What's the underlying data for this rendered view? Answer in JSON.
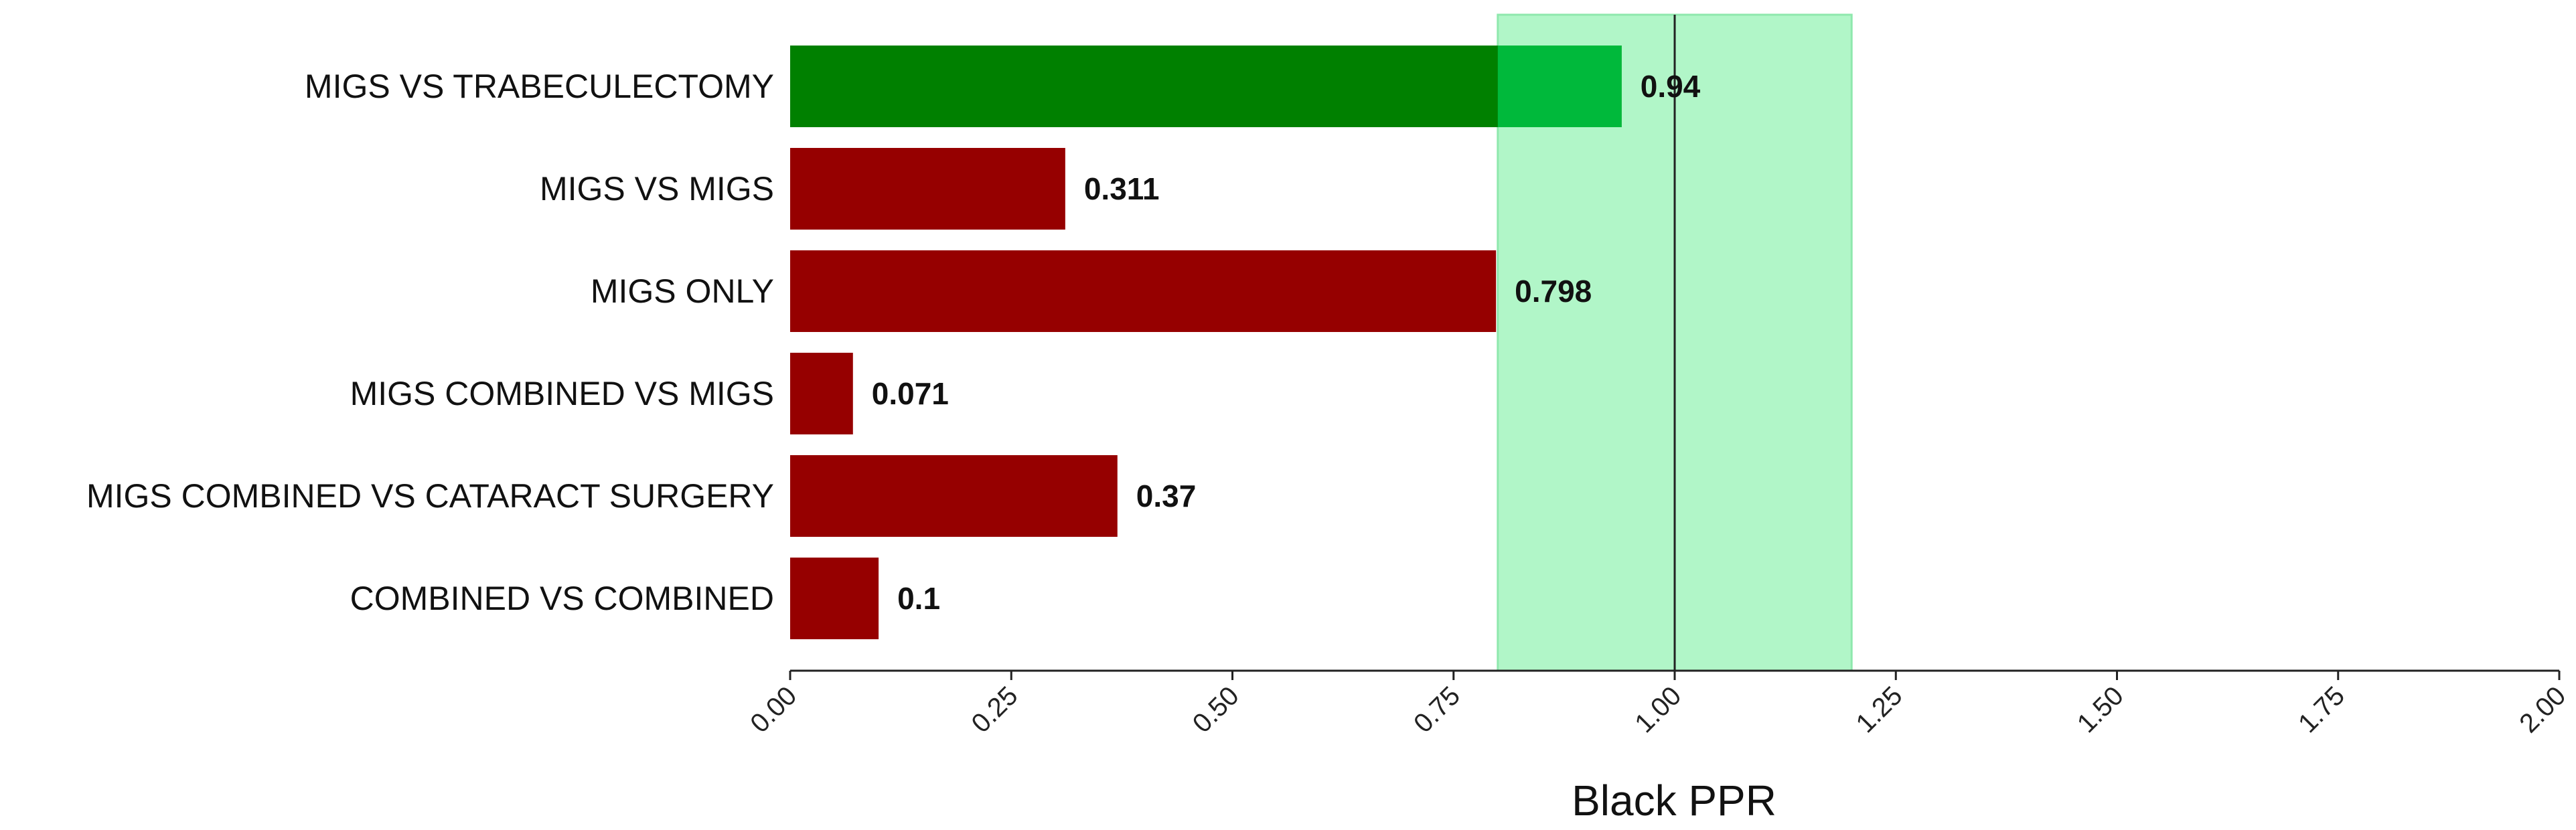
{
  "chart_data": {
    "type": "bar",
    "orientation": "horizontal",
    "categories": [
      "MIGS VS TRABECULECTOMY",
      "MIGS VS MIGS",
      "MIGS ONLY",
      "MIGS COMBINED VS MIGS",
      "MIGS COMBINED VS CATARACT SURGERY",
      "COMBINED VS COMBINED"
    ],
    "values": [
      0.94,
      0.311,
      0.798,
      0.071,
      0.37,
      0.1
    ],
    "value_labels": [
      "0.94",
      "0.311",
      "0.798",
      "0.071",
      "0.37",
      "0.1"
    ],
    "title": "",
    "xlabel": "Black PPR",
    "ylabel": "",
    "xlim": [
      0,
      2
    ],
    "xticks": [
      0,
      0.25,
      0.5,
      0.75,
      1,
      1.25,
      1.5,
      1.75,
      2
    ],
    "xtick_labels": [
      "0.00",
      "0.25",
      "0.50",
      "0.75",
      "1.00",
      "1.25",
      "1.50",
      "1.75",
      "2.00"
    ],
    "reference_line": 1.0,
    "shaded_band": [
      0.8,
      1.2
    ],
    "grid": false,
    "legend": "none",
    "colors": {
      "in_band": "#008000",
      "out_of_band": "#960000",
      "in_band_overlap": "#00b93b",
      "band": "#b1f6c8",
      "band_edge": "#8fe8ad",
      "reference_line": "#222222"
    }
  }
}
